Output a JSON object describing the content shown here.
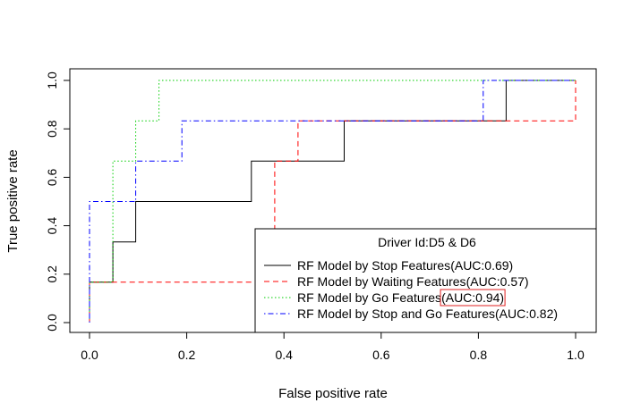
{
  "chart_data": {
    "type": "line",
    "title": "",
    "xlabel": "False positive rate",
    "ylabel": "True positive rate",
    "xlim": [
      0,
      1
    ],
    "ylim": [
      0,
      1
    ],
    "x_ticks": [
      "0.0",
      "0.2",
      "0.4",
      "0.6",
      "0.8",
      "1.0"
    ],
    "y_ticks": [
      "0.0",
      "0.2",
      "0.4",
      "0.6",
      "0.8",
      "1.0"
    ],
    "grid": false,
    "legend": {
      "placement": "bottom-right",
      "title": "Driver Id:D5 & D6",
      "title_color": "#0000ff",
      "highlight": {
        "series_index": 2,
        "text": "(AUC:0.94)",
        "color": "#e02020"
      }
    },
    "series": [
      {
        "name": "RF Model by Stop Features(AUC:0.69)",
        "legend_prefix": "RF Model by Stop Features",
        "legend_suffix": "(AUC:0.69)",
        "color": "#000000",
        "dash": "solid",
        "x": [
          0,
          0,
          0.048,
          0.048,
          0.095,
          0.095,
          0.333,
          0.333,
          0.524,
          0.524,
          0.857,
          0.857,
          1.0
        ],
        "y": [
          0,
          0.167,
          0.167,
          0.333,
          0.333,
          0.5,
          0.5,
          0.667,
          0.667,
          0.833,
          0.833,
          1.0,
          1.0
        ]
      },
      {
        "name": "RF Model by Waiting Features(AUC:0.57)",
        "legend_prefix": "RF Model by Waiting Features",
        "legend_suffix": "(AUC:0.57)",
        "color": "#ff0000",
        "dash": "dashed",
        "x": [
          0,
          0,
          0.381,
          0.381,
          0.429,
          0.429,
          1.0,
          1.0
        ],
        "y": [
          0,
          0.167,
          0.167,
          0.667,
          0.667,
          0.833,
          0.833,
          1.0
        ]
      },
      {
        "name": "RF Model by Go Features(AUC:0.94)",
        "legend_prefix": "RF Model by Go Features",
        "legend_suffix": "(AUC:0.94)",
        "color": "#00cd00",
        "dash": "dotted",
        "x": [
          0,
          0,
          0.048,
          0.048,
          0.048,
          0.048,
          0.095,
          0.095,
          0.143,
          0.143,
          1.0
        ],
        "y": [
          0,
          0.167,
          0.167,
          0.5,
          0.5,
          0.667,
          0.667,
          0.833,
          0.833,
          1.0,
          1.0
        ]
      },
      {
        "name": "RF Model by Stop and Go Features(AUC:0.82)",
        "legend_prefix": "RF Model by Stop and Go Features",
        "legend_suffix": "(AUC:0.82)",
        "color": "#0000ff",
        "dash": "dotdash",
        "x": [
          0,
          0,
          0.095,
          0.095,
          0.19,
          0.19,
          0.81,
          0.81,
          1.0
        ],
        "y": [
          0,
          0.5,
          0.5,
          0.667,
          0.667,
          0.833,
          0.833,
          1.0,
          1.0
        ]
      }
    ]
  }
}
